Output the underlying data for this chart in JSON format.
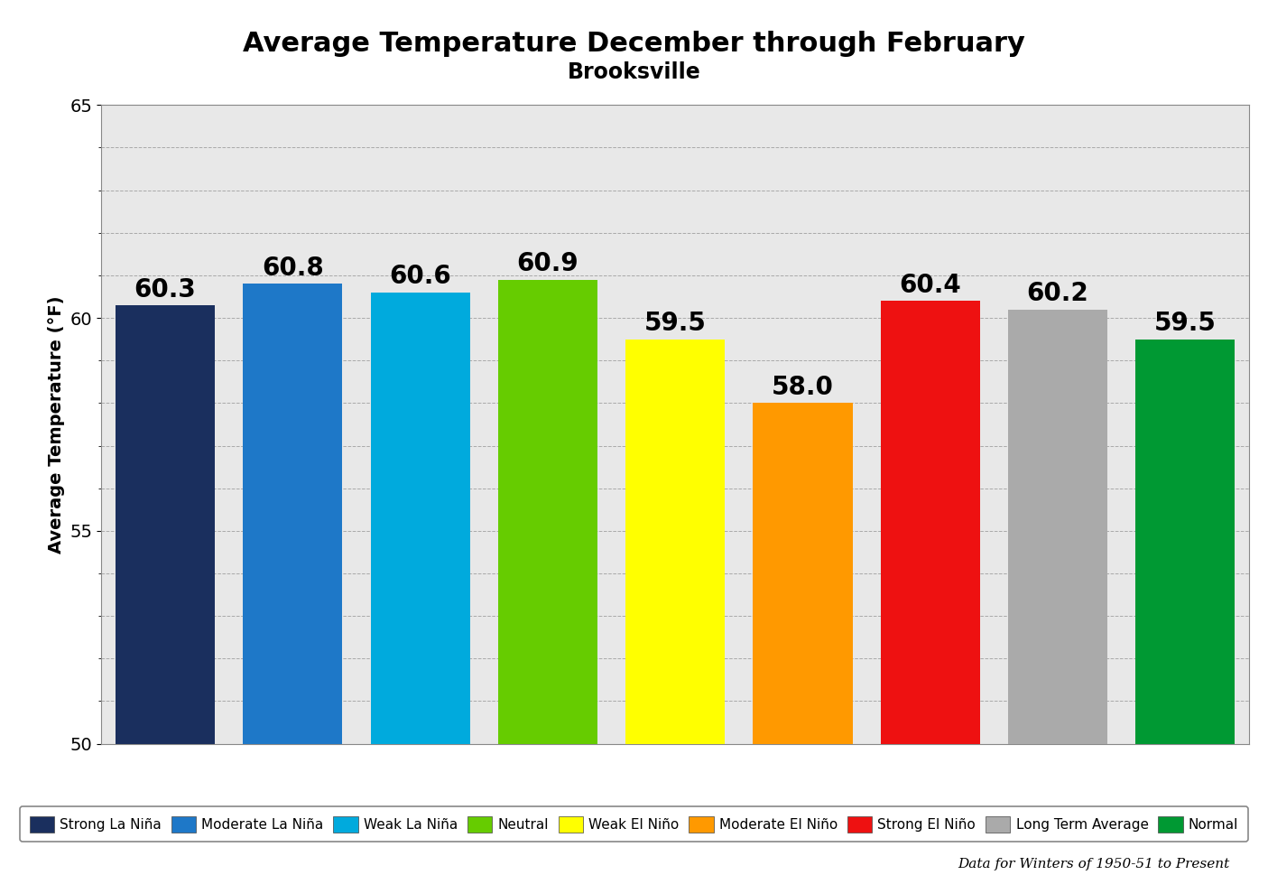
{
  "title": "Average Temperature December through February",
  "subtitle": "Brooksville",
  "ylabel": "Average Temperature (°F)",
  "ylim": [
    50,
    65
  ],
  "yticks_major": [
    50,
    55,
    60,
    65
  ],
  "yticks_minor": [
    50,
    51,
    52,
    53,
    54,
    55,
    56,
    57,
    58,
    59,
    60,
    61,
    62,
    63,
    64,
    65
  ],
  "categories": [
    "Strong La Niña",
    "Moderate La Niña",
    "Weak La Niña",
    "Neutral",
    "Weak El Niño",
    "Moderate El Niño",
    "Strong El Niño",
    "Long Term Average",
    "Normal"
  ],
  "values": [
    60.3,
    60.8,
    60.6,
    60.9,
    59.5,
    58.0,
    60.4,
    60.2,
    59.5
  ],
  "bar_colors": [
    "#1a2f5e",
    "#1e78c8",
    "#00aadd",
    "#66cc00",
    "#ffff00",
    "#ff9900",
    "#ee1111",
    "#aaaaaa",
    "#009933"
  ],
  "value_labels": [
    "60.3",
    "60.8",
    "60.6",
    "60.9",
    "59.5",
    "58.0",
    "60.4",
    "60.2",
    "59.5"
  ],
  "footnote": "Data for Winters of 1950-51 to Present",
  "background_color": "#ffffff",
  "plot_bg_color": "#e8e8e8",
  "grid_color": "#aaaaaa",
  "title_fontsize": 22,
  "subtitle_fontsize": 17,
  "ylabel_fontsize": 14,
  "value_label_fontsize": 20,
  "legend_fontsize": 11,
  "tick_fontsize": 14
}
